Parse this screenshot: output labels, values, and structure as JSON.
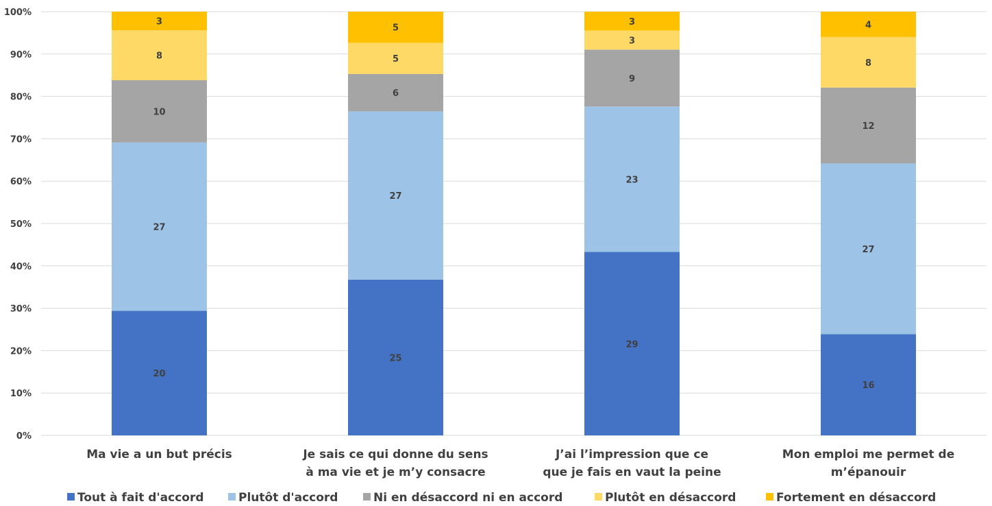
{
  "chart_data": {
    "type": "bar",
    "stacked": true,
    "percent": true,
    "categories": [
      [
        "Ma vie a un but précis"
      ],
      [
        "Je sais ce qui donne du sens",
        "à ma vie et je m’y consacre"
      ],
      [
        "J’ai l’impression que ce",
        "que je fais en vaut la peine"
      ],
      [
        "Mon emploi me permet de",
        "m’épanouir"
      ]
    ],
    "series": [
      {
        "name": "Tout à fait d'accord",
        "color": "#4472C4",
        "values": [
          20,
          25,
          29,
          16
        ]
      },
      {
        "name": "Plutôt d'accord",
        "color": "#9DC3E6",
        "values": [
          27,
          27,
          23,
          27
        ]
      },
      {
        "name": "Ni en désaccord ni en accord",
        "color": "#A5A5A5",
        "values": [
          10,
          6,
          9,
          12
        ]
      },
      {
        "name": "Plutôt en désaccord",
        "color": "#FFD966",
        "values": [
          8,
          5,
          3,
          8
        ]
      },
      {
        "name": "Fortement en désaccord",
        "color": "#FFC000",
        "values": [
          3,
          5,
          3,
          4
        ]
      }
    ],
    "yticks": [
      "0%",
      "10%",
      "20%",
      "30%",
      "40%",
      "50%",
      "60%",
      "70%",
      "80%",
      "90%",
      "100%"
    ],
    "ylim": [
      0,
      100
    ],
    "grid": true,
    "legend": "bottom"
  }
}
